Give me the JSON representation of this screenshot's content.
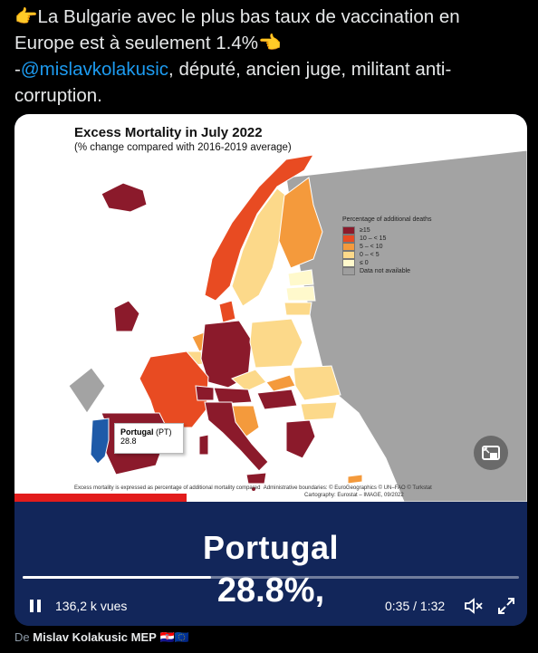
{
  "tweet": {
    "line1": "La Bulgarie avec le plus bas taux de vaccination en",
    "line2": "Europe est à seulement 1.4%",
    "prefix": "-",
    "mention": "@mislavkolakusic",
    "line3_rest": ", député, ancien juge, militant anti-",
    "line4": "corruption.",
    "emoji_left": "pointing-right-hand",
    "emoji_right": "pointing-left-hand"
  },
  "map": {
    "title": "Excess Mortality in July 2022",
    "subtitle": "(% change compared with 2016-2019 average)",
    "legend_title": "Percentage of additional deaths",
    "legend": [
      {
        "label": "≥15",
        "color": "#8b1a2b"
      },
      {
        "label": "10 – < 15",
        "color": "#e84b22"
      },
      {
        "label": "5 – < 10",
        "color": "#f49a3c"
      },
      {
        "label": "0 – < 5",
        "color": "#fcd98a"
      },
      {
        "label": "≤ 0",
        "color": "#fff9cc"
      },
      {
        "label": "Data not available",
        "color": "#9e9e9e"
      }
    ],
    "callout_country": "Portugal",
    "callout_code": "(PT)",
    "callout_value": "28.8",
    "footnote": "Excess mortality is expressed as percentage of additional mortality compared",
    "admin_boundaries": "Administrative boundaries: © EuroGeographics © UN–FAO © Turkstat",
    "cartography": "Cartography: Eurostat – IMAGE, 09/2022"
  },
  "overlay": {
    "country": "Portugal",
    "value": "28.8%,"
  },
  "player": {
    "views": "136,2 k vues",
    "time": "0:35 / 1:32",
    "progress_fraction": 0.38
  },
  "byline": {
    "prefix": "De",
    "author": "Mislav Kolakusic MEP"
  }
}
